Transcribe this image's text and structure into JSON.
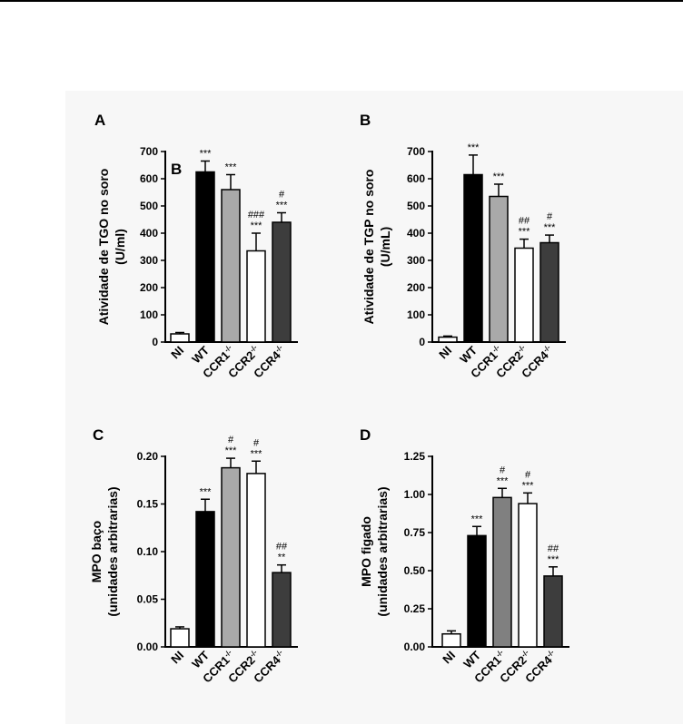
{
  "chart_data": [
    {
      "type": "bar",
      "panel": "A",
      "inset_label": "B",
      "categories": [
        "NI",
        "WT",
        "CCR1-/-",
        "CCR2-/-",
        "CCR4-/-"
      ],
      "category_labels": [
        {
          "base": "NI",
          "sup": ""
        },
        {
          "base": "WT",
          "sup": ""
        },
        {
          "base": "CCR1",
          "sup": "-/-"
        },
        {
          "base": "CCR2",
          "sup": "-/-"
        },
        {
          "base": "CCR4",
          "sup": "-/-"
        }
      ],
      "values": [
        30,
        625,
        560,
        335,
        440
      ],
      "errors": [
        5,
        40,
        55,
        65,
        35
      ],
      "colors": [
        "#ffffff",
        "#000000",
        "#a9a9a9",
        "#ffffff",
        "#3d3d3d"
      ],
      "annotations": [
        [
          "",
          ""
        ],
        [
          "***",
          ""
        ],
        [
          "***",
          ""
        ],
        [
          "***",
          "###"
        ],
        [
          "***",
          "#"
        ]
      ],
      "ylabel_lines": [
        "Atividade de TGO no soro",
        "(U/ml)"
      ],
      "ylim": [
        0,
        700
      ],
      "yticks": [
        0,
        100,
        200,
        300,
        400,
        500,
        600,
        700
      ],
      "yticklabels": [
        "0",
        "100",
        "200",
        "300",
        "400",
        "500",
        "600",
        "700"
      ]
    },
    {
      "type": "bar",
      "panel": "B",
      "categories": [
        "NI",
        "WT",
        "CCR1-/-",
        "CCR2-/-",
        "CCR4-/-"
      ],
      "category_labels": [
        {
          "base": "NI",
          "sup": ""
        },
        {
          "base": "WT",
          "sup": ""
        },
        {
          "base": "CCR1",
          "sup": "-/-"
        },
        {
          "base": "CCR2",
          "sup": "-/-"
        },
        {
          "base": "CCR4",
          "sup": "-/-"
        }
      ],
      "values": [
        18,
        615,
        535,
        345,
        365
      ],
      "errors": [
        4,
        72,
        45,
        33,
        28
      ],
      "colors": [
        "#ffffff",
        "#000000",
        "#a9a9a9",
        "#ffffff",
        "#3d3d3d"
      ],
      "annotations": [
        [
          "",
          ""
        ],
        [
          "***",
          ""
        ],
        [
          "***",
          ""
        ],
        [
          "***",
          "##"
        ],
        [
          "***",
          "#"
        ]
      ],
      "ylabel_lines": [
        "Atividade de TGP no soro",
        "(U/mL)"
      ],
      "ylim": [
        0,
        700
      ],
      "yticks": [
        0,
        100,
        200,
        300,
        400,
        500,
        600,
        700
      ],
      "yticklabels": [
        "0",
        "100",
        "200",
        "300",
        "400",
        "500",
        "600",
        "700"
      ]
    },
    {
      "type": "bar",
      "panel": "C",
      "categories": [
        "NI",
        "WT",
        "CCR1-/-",
        "CCR2-/-",
        "CCR4-/-"
      ],
      "category_labels": [
        {
          "base": "NI",
          "sup": ""
        },
        {
          "base": "WT",
          "sup": ""
        },
        {
          "base": "CCR1",
          "sup": "-/-"
        },
        {
          "base": "CCR2",
          "sup": "-/-"
        },
        {
          "base": "CCR4",
          "sup": "-/-"
        }
      ],
      "values": [
        0.019,
        0.142,
        0.188,
        0.182,
        0.078
      ],
      "errors": [
        0.002,
        0.013,
        0.01,
        0.013,
        0.008
      ],
      "colors": [
        "#ffffff",
        "#000000",
        "#a9a9a9",
        "#ffffff",
        "#3d3d3d"
      ],
      "annotations": [
        [
          "",
          ""
        ],
        [
          "***",
          ""
        ],
        [
          "***",
          "#"
        ],
        [
          "***",
          "#"
        ],
        [
          "**",
          "##"
        ]
      ],
      "ylabel_lines": [
        "MPO baço",
        "(unidades arbitrarias)"
      ],
      "ylim": [
        0,
        0.2
      ],
      "yticks": [
        0,
        0.05,
        0.1,
        0.15,
        0.2
      ],
      "yticklabels": [
        "0.00",
        "0.05",
        "0.10",
        "0.15",
        "0.20"
      ]
    },
    {
      "type": "bar",
      "panel": "D",
      "categories": [
        "NI",
        "WT",
        "CCR1-/-",
        "CCR2-/-",
        "CCR4-/-"
      ],
      "category_labels": [
        {
          "base": "NI",
          "sup": ""
        },
        {
          "base": "WT",
          "sup": ""
        },
        {
          "base": "CCR1",
          "sup": "-/-"
        },
        {
          "base": "CCR2",
          "sup": "-/-"
        },
        {
          "base": "CCR4",
          "sup": "-/-"
        }
      ],
      "values": [
        0.085,
        0.73,
        0.98,
        0.94,
        0.465
      ],
      "errors": [
        0.02,
        0.06,
        0.06,
        0.07,
        0.06
      ],
      "colors": [
        "#ffffff",
        "#000000",
        "#808080",
        "#ffffff",
        "#3d3d3d"
      ],
      "annotations": [
        [
          "",
          ""
        ],
        [
          "***",
          ""
        ],
        [
          "***",
          "#"
        ],
        [
          "***",
          "#"
        ],
        [
          "***",
          "##"
        ]
      ],
      "ylabel_lines": [
        "MPO figado",
        "(unidades arbitrarias)"
      ],
      "ylim": [
        0,
        1.25
      ],
      "yticks": [
        0,
        0.25,
        0.5,
        0.75,
        1.0,
        1.25
      ],
      "yticklabels": [
        "0.00",
        "0.25",
        "0.50",
        "0.75",
        "1.00",
        "1.25"
      ]
    }
  ]
}
